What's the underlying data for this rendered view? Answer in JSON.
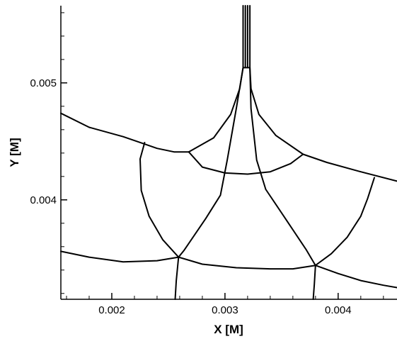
{
  "chart_data": {
    "type": "line",
    "xlabel": "X [M]",
    "ylabel": "Y [M]",
    "xlim": [
      0.00155,
      0.00452
    ],
    "ylim": [
      0.00315,
      0.00566
    ],
    "xticks": [
      {
        "value": 0.002,
        "label": "0.002"
      },
      {
        "value": 0.003,
        "label": "0.003"
      },
      {
        "value": 0.004,
        "label": "0.004"
      }
    ],
    "yticks": [
      {
        "value": 0.004,
        "label": "0.004"
      },
      {
        "value": 0.005,
        "label": "0.005"
      }
    ],
    "x_minor_ticks": [
      0.0016,
      0.0018,
      0.0022,
      0.0024,
      0.0026,
      0.0028,
      0.0032,
      0.0034,
      0.0036,
      0.0038,
      0.0042,
      0.0044
    ],
    "y_minor_ticks": [
      0.0032,
      0.0034,
      0.0036,
      0.0038,
      0.0042,
      0.0044,
      0.0046,
      0.0048,
      0.0052,
      0.0054,
      0.0056
    ],
    "grid": false,
    "series": [
      {
        "points": [
          [
            0.00155,
            0.00474
          ],
          [
            0.0018,
            0.00462
          ],
          [
            0.0021,
            0.00454
          ],
          [
            0.00228,
            0.00448
          ],
          [
            0.0024,
            0.00444
          ],
          [
            0.00255,
            0.00441
          ],
          [
            0.00268,
            0.00441
          ]
        ]
      },
      {
        "points": [
          [
            0.00268,
            0.00441
          ],
          [
            0.0029,
            0.00453
          ],
          [
            0.00305,
            0.00473
          ],
          [
            0.00313,
            0.00495
          ],
          [
            0.00316,
            0.00513
          ]
        ]
      },
      {
        "points": [
          [
            0.00268,
            0.00441
          ],
          [
            0.0028,
            0.00428
          ],
          [
            0.003,
            0.00423
          ],
          [
            0.0032,
            0.00422
          ],
          [
            0.0034,
            0.00424
          ],
          [
            0.00358,
            0.00431
          ],
          [
            0.00369,
            0.00439
          ]
        ]
      },
      {
        "points": [
          [
            0.00369,
            0.00439
          ],
          [
            0.0039,
            0.00432
          ],
          [
            0.0042,
            0.00424
          ],
          [
            0.00452,
            0.00416
          ]
        ]
      },
      {
        "points": [
          [
            0.00369,
            0.00439
          ],
          [
            0.00345,
            0.00455
          ],
          [
            0.0033,
            0.00473
          ],
          [
            0.00323,
            0.00495
          ],
          [
            0.00322,
            0.00513
          ]
        ]
      },
      {
        "points": [
          [
            0.00316,
            0.00513
          ],
          [
            0.00322,
            0.00513
          ]
        ]
      },
      {
        "points": [
          [
            0.00316,
            0.00513
          ],
          [
            0.00316,
            0.00566
          ]
        ]
      },
      {
        "points": [
          [
            0.00318,
            0.00513
          ],
          [
            0.00318,
            0.00566
          ]
        ]
      },
      {
        "points": [
          [
            0.0032,
            0.00513
          ],
          [
            0.0032,
            0.00566
          ]
        ]
      },
      {
        "points": [
          [
            0.00322,
            0.00513
          ],
          [
            0.00322,
            0.00566
          ]
        ]
      },
      {
        "points": [
          [
            0.00316,
            0.00513
          ],
          [
            0.0031,
            0.00478
          ],
          [
            0.00302,
            0.00434
          ],
          [
            0.00296,
            0.00404
          ],
          [
            0.00283,
            0.00384
          ],
          [
            0.00264,
            0.00357
          ],
          [
            0.00259,
            0.00351
          ]
        ]
      },
      {
        "points": [
          [
            0.00322,
            0.00513
          ],
          [
            0.00323,
            0.00478
          ],
          [
            0.00328,
            0.00434
          ],
          [
            0.00336,
            0.00409
          ],
          [
            0.00352,
            0.00386
          ],
          [
            0.00372,
            0.00357
          ],
          [
            0.0038,
            0.00344
          ]
        ]
      },
      {
        "points": [
          [
            0.00229,
            0.00449
          ],
          [
            0.00225,
            0.00435
          ],
          [
            0.00226,
            0.00408
          ],
          [
            0.00233,
            0.00386
          ],
          [
            0.00245,
            0.00366
          ],
          [
            0.00259,
            0.00351
          ]
        ]
      },
      {
        "points": [
          [
            0.00432,
            0.00419
          ],
          [
            0.00426,
            0.00401
          ],
          [
            0.0042,
            0.00386
          ],
          [
            0.00408,
            0.00368
          ],
          [
            0.00394,
            0.00354
          ],
          [
            0.0038,
            0.00344
          ]
        ]
      },
      {
        "points": [
          [
            0.00155,
            0.00356
          ],
          [
            0.0018,
            0.00351
          ],
          [
            0.0021,
            0.00347
          ],
          [
            0.0024,
            0.00348
          ],
          [
            0.00259,
            0.00351
          ]
        ]
      },
      {
        "points": [
          [
            0.00259,
            0.00351
          ],
          [
            0.0028,
            0.00345
          ],
          [
            0.0031,
            0.00342
          ],
          [
            0.0034,
            0.00341
          ],
          [
            0.0036,
            0.00341
          ],
          [
            0.0038,
            0.00344
          ]
        ]
      },
      {
        "points": [
          [
            0.0038,
            0.00344
          ],
          [
            0.004,
            0.00337
          ],
          [
            0.0042,
            0.00331
          ],
          [
            0.0044,
            0.00327
          ],
          [
            0.00452,
            0.00325
          ]
        ]
      },
      {
        "points": [
          [
            0.00259,
            0.00351
          ],
          [
            0.00257,
            0.00331
          ],
          [
            0.00256,
            0.00315
          ]
        ]
      },
      {
        "points": [
          [
            0.0038,
            0.00344
          ],
          [
            0.00379,
            0.00328
          ],
          [
            0.00378,
            0.00315
          ]
        ]
      }
    ]
  }
}
